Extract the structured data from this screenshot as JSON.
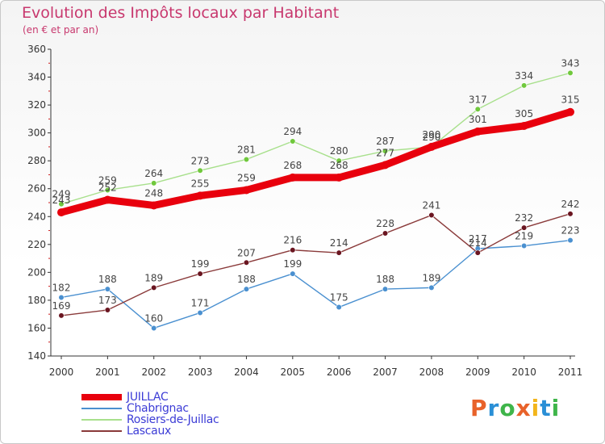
{
  "header": {
    "title": "Evolution des Impôts locaux par Habitant",
    "subtitle": "(en € et par an)"
  },
  "logo": {
    "text": "Proxiti",
    "colors": [
      "#e8622a",
      "#2a8fd6",
      "#3fb54a",
      "#e8622a",
      "#f2b51b",
      "#2a8fd6",
      "#3fb54a"
    ]
  },
  "chart_data": {
    "type": "line",
    "title": "Evolution des Impôts locaux par Habitant",
    "subtitle": "(en € et par an)",
    "x": [
      "2000",
      "2001",
      "2002",
      "2003",
      "2004",
      "2005",
      "2006",
      "2007",
      "2008",
      "2009",
      "2010",
      "2011"
    ],
    "ylim": [
      140,
      360
    ],
    "yticks": [
      140,
      160,
      180,
      200,
      220,
      240,
      260,
      280,
      300,
      320,
      340,
      360
    ],
    "grid": false,
    "legend_position": "bottom-left",
    "series": [
      {
        "name": "JUILLAC",
        "color": "#e8000d",
        "emphasis": true,
        "values": [
          243,
          252,
          248,
          255,
          259,
          268,
          268,
          277,
          290,
          301,
          305,
          315
        ]
      },
      {
        "name": "Chabrignac",
        "color": "#4a90d0",
        "marker": "#4a90d0",
        "values": [
          182,
          188,
          160,
          171,
          188,
          199,
          175,
          188,
          189,
          217,
          219,
          223
        ]
      },
      {
        "name": "Rosiers-de-Juillac",
        "color": "#a8e08c",
        "marker": "#70c83c",
        "values": [
          249,
          259,
          264,
          273,
          281,
          294,
          280,
          287,
          290,
          317,
          334,
          343
        ]
      },
      {
        "name": "Lascaux",
        "color": "#8a3a3a",
        "marker": "#6a1520",
        "values": [
          169,
          173,
          189,
          199,
          207,
          216,
          214,
          228,
          241,
          214,
          232,
          242
        ]
      }
    ]
  }
}
